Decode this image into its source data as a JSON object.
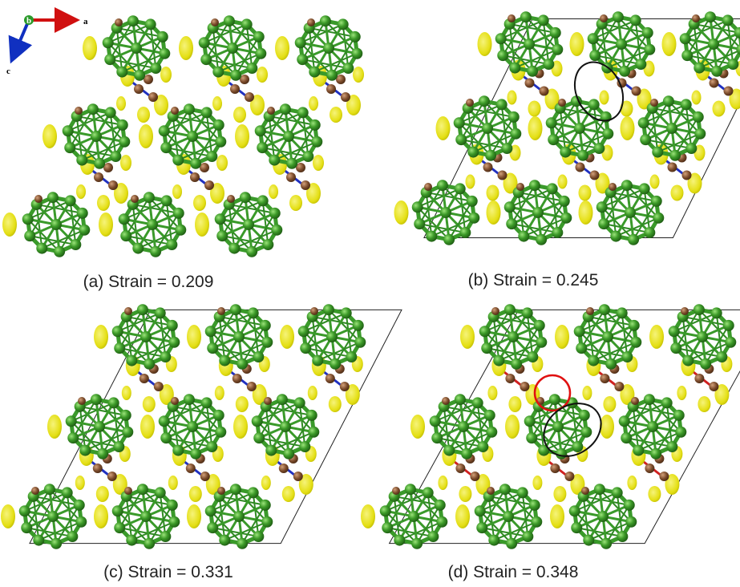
{
  "axes": {
    "b": "b",
    "a": "a",
    "c": "c"
  },
  "panels": [
    {
      "label": "(a) Strain = 0.209"
    },
    {
      "label": "(b) Strain = 0.245"
    },
    {
      "label": "(c) Strain = 0.331"
    },
    {
      "label": "(d) Strain = 0.348"
    }
  ]
}
